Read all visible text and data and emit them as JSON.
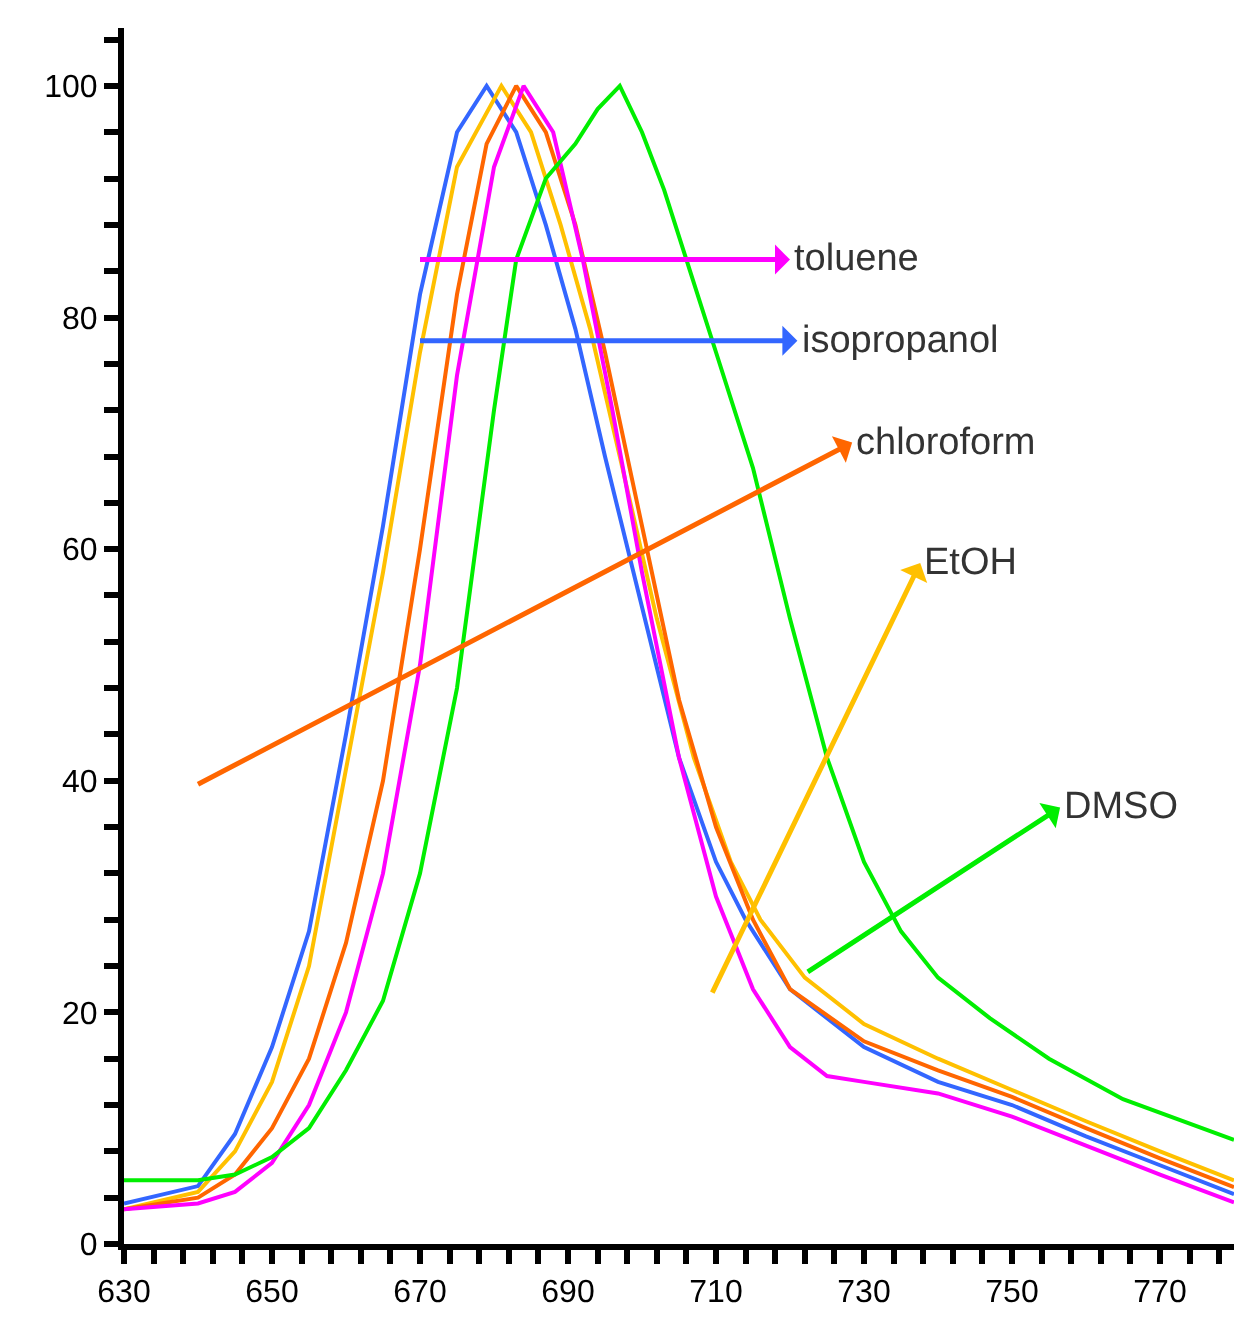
{
  "chart_data": {
    "type": "line",
    "xlim": [
      630,
      780
    ],
    "ylim": [
      0,
      105
    ],
    "grid": false,
    "legend": "right",
    "marker": "none",
    "line_style": "solid",
    "xticks": [
      630,
      {
        "value": 634,
        "label": null
      },
      {
        "value": 638,
        "label": null
      },
      {
        "value": 642,
        "label": null
      },
      {
        "value": 646,
        "label": null
      },
      650,
      {
        "value": 654,
        "label": null
      },
      {
        "value": 658,
        "label": null
      },
      {
        "value": 662,
        "label": null
      },
      {
        "value": 666,
        "label": null
      },
      670,
      {
        "value": 674,
        "label": null
      },
      {
        "value": 678,
        "label": null
      },
      {
        "value": 682,
        "label": null
      },
      {
        "value": 686,
        "label": null
      },
      690,
      {
        "value": 694,
        "label": null
      },
      {
        "value": 698,
        "label": null
      },
      {
        "value": 702,
        "label": null
      },
      {
        "value": 706,
        "label": null
      },
      710,
      {
        "value": 714,
        "label": null
      },
      {
        "value": 718,
        "label": null
      },
      {
        "value": 722,
        "label": null
      },
      {
        "value": 726,
        "label": null
      },
      730,
      {
        "value": 734,
        "label": null
      },
      {
        "value": 738,
        "label": null
      },
      {
        "value": 742,
        "label": null
      },
      {
        "value": 746,
        "label": null
      },
      750,
      {
        "value": 754,
        "label": null
      },
      {
        "value": 758,
        "label": null
      },
      {
        "value": 762,
        "label": null
      },
      {
        "value": 766,
        "label": null
      },
      770,
      {
        "value": 774,
        "label": null
      },
      {
        "value": 778,
        "label": null
      }
    ],
    "yticks": [
      0,
      {
        "value": 4,
        "label": null
      },
      {
        "value": 8,
        "label": null
      },
      {
        "value": 12,
        "label": null
      },
      {
        "value": 16,
        "label": null
      },
      20,
      {
        "value": 24,
        "label": null
      },
      {
        "value": 28,
        "label": null
      },
      {
        "value": 32,
        "label": null
      },
      {
        "value": 36,
        "label": null
      },
      40,
      {
        "value": 44,
        "label": null
      },
      {
        "value": 48,
        "label": null
      },
      {
        "value": 52,
        "label": null
      },
      {
        "value": 56,
        "label": null
      },
      60,
      {
        "value": 64,
        "label": null
      },
      {
        "value": 68,
        "label": null
      },
      {
        "value": 72,
        "label": null
      },
      {
        "value": 76,
        "label": null
      },
      80,
      {
        "value": 84,
        "label": null
      },
      {
        "value": 88,
        "label": null
      },
      {
        "value": 92,
        "label": null
      },
      {
        "value": 96,
        "label": null
      },
      100,
      {
        "value": 104,
        "label": null
      }
    ],
    "series": [
      {
        "name": "isopropanol",
        "color": "#3366ff",
        "x": [
          630,
          640,
          645,
          650,
          655,
          660,
          665,
          670,
          675,
          679,
          683,
          687,
          691,
          695,
          700,
          705,
          710,
          714,
          720,
          730,
          740,
          750,
          760,
          770,
          780
        ],
        "values": [
          3.5,
          5,
          9.5,
          17,
          27,
          44,
          62,
          82,
          96,
          100,
          96,
          88,
          79,
          68,
          55,
          42,
          33,
          28,
          22,
          17,
          14,
          12,
          9.3,
          6.8,
          4.3
        ]
      },
      {
        "name": "EtOH",
        "color": "#ffc000",
        "x": [
          630,
          640,
          645,
          650,
          655,
          660,
          665,
          670,
          675,
          681,
          685,
          689,
          693,
          697,
          702,
          707,
          712,
          716,
          722,
          730,
          740,
          750,
          760,
          770,
          780
        ],
        "values": [
          3,
          4.5,
          8,
          14,
          24,
          41,
          58,
          77,
          93,
          100,
          96,
          88,
          79,
          68,
          54,
          42,
          33,
          28,
          23,
          19,
          16,
          13.3,
          10.6,
          8,
          5.5
        ]
      },
      {
        "name": "chloroform",
        "color": "#ff6600",
        "x": [
          630,
          640,
          645,
          650,
          655,
          660,
          665,
          670,
          675,
          679,
          683,
          687,
          691,
          695,
          700,
          705,
          710,
          715,
          720,
          730,
          740,
          750,
          760,
          770,
          780
        ],
        "values": [
          3,
          4,
          6,
          10,
          16,
          26,
          40,
          60,
          82,
          95,
          100,
          96,
          88,
          77,
          62,
          47,
          36,
          28,
          22,
          17.5,
          15,
          12.7,
          10,
          7.4,
          4.9
        ]
      },
      {
        "name": "toluene",
        "color": "#ff00ff",
        "x": [
          630,
          640,
          645,
          650,
          655,
          660,
          665,
          670,
          675,
          680,
          684,
          688,
          692,
          696,
          700,
          705,
          710,
          715,
          720,
          725,
          730,
          740,
          750,
          760,
          770,
          780
        ],
        "values": [
          3,
          3.5,
          4.5,
          7,
          12,
          20,
          32,
          50,
          75,
          93,
          100,
          96,
          85,
          72,
          58,
          42,
          30,
          22,
          17,
          14.5,
          14,
          13,
          11,
          8.5,
          6,
          3.6
        ]
      },
      {
        "name": "DMSO",
        "color": "#00ee00",
        "x": [
          630,
          640,
          645,
          650,
          655,
          660,
          665,
          670,
          675,
          680,
          683,
          687,
          691,
          694,
          697,
          700,
          703,
          706,
          710,
          715,
          720,
          725,
          730,
          735,
          740,
          747,
          755,
          765,
          780
        ],
        "values": [
          5.5,
          5.5,
          6,
          7.5,
          10,
          15,
          21,
          32,
          48,
          72,
          85,
          92,
          95,
          98,
          100,
          96,
          91,
          85,
          77,
          67,
          54,
          42,
          33,
          27,
          23,
          19.5,
          16,
          12.5,
          9
        ]
      }
    ]
  }
}
